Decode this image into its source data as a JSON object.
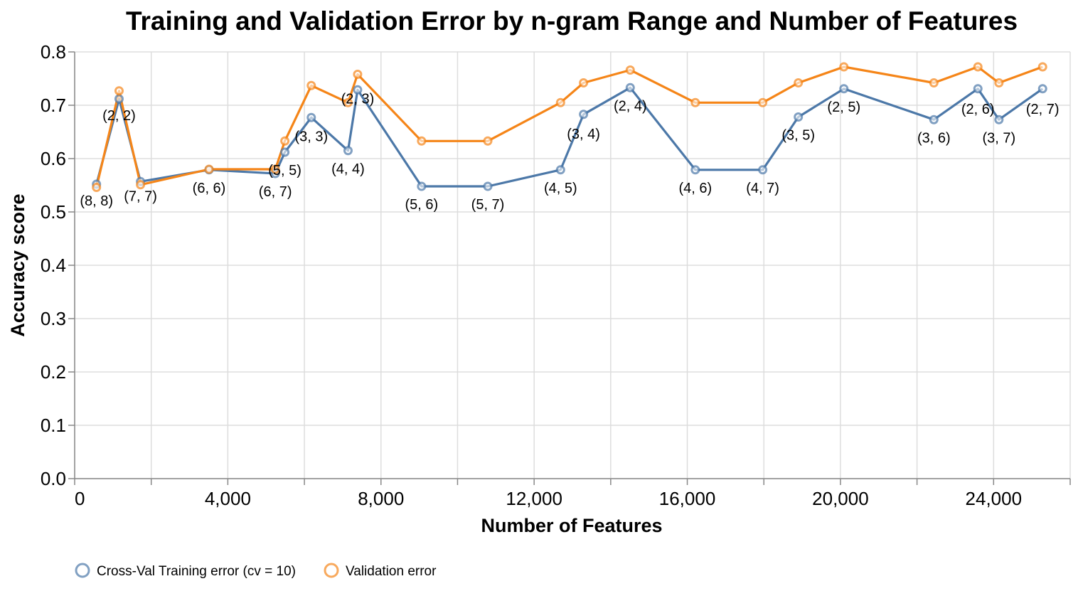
{
  "chart_data": {
    "type": "line",
    "title": "Training and Validation Error by n-gram Range and Number of Features",
    "xlabel": "Number of Features",
    "ylabel": "Accuracy score",
    "xlim": [
      0,
      26000
    ],
    "ylim": [
      0,
      0.8
    ],
    "x_ticks": [
      0,
      4000,
      8000,
      12000,
      16000,
      20000,
      24000
    ],
    "x_tick_labels": [
      "0",
      "4,000",
      "8,000",
      "12,000",
      "16,000",
      "20,000",
      "24,000"
    ],
    "y_ticks": [
      0,
      0.1,
      0.2,
      0.3,
      0.4,
      0.5,
      0.6,
      0.7,
      0.8
    ],
    "y_tick_labels": [
      "0.0",
      "0.1",
      "0.2",
      "0.3",
      "0.4",
      "0.5",
      "0.6",
      "0.7",
      "0.8"
    ],
    "grid": true,
    "legend_position": "bottom-left",
    "series": [
      {
        "name": "Cross-Val Training error (cv = 10)",
        "color": "#4c78a8",
        "x": [
          570,
          1160,
          1720,
          3510,
          5240,
          5490,
          6180,
          7140,
          7390,
          9060,
          10790,
          12690,
          13290,
          14510,
          16210,
          17970,
          18900,
          20090,
          22440,
          23590,
          24140,
          25280
        ],
        "values": [
          0.552,
          0.712,
          0.557,
          0.579,
          0.572,
          0.612,
          0.677,
          0.615,
          0.729,
          0.548,
          0.548,
          0.579,
          0.683,
          0.733,
          0.579,
          0.579,
          0.678,
          0.731,
          0.673,
          0.731,
          0.673,
          0.731
        ]
      },
      {
        "name": "Validation error",
        "color": "#f58518",
        "x": [
          570,
          1160,
          1720,
          3510,
          5240,
          5490,
          6180,
          7140,
          7390,
          9060,
          10790,
          12690,
          13290,
          14510,
          16210,
          17970,
          18900,
          20090,
          22440,
          23590,
          24140,
          25280
        ],
        "values": [
          0.546,
          0.727,
          0.551,
          0.58,
          0.58,
          0.633,
          0.737,
          0.705,
          0.758,
          0.633,
          0.633,
          0.705,
          0.742,
          0.766,
          0.705,
          0.705,
          0.742,
          0.772,
          0.742,
          0.772,
          0.742,
          0.772
        ]
      }
    ],
    "point_labels": [
      "(8, 8)",
      "(2, 2)",
      "(7, 7)",
      "(6, 6)",
      "(6, 7)",
      "(5, 5)",
      "(3, 3)",
      "(4, 4)",
      "(2, 3)",
      "(5, 6)",
      "(5, 7)",
      "(4, 5)",
      "(3, 4)",
      "(2, 4)",
      "(4, 6)",
      "(4, 7)",
      "(3, 5)",
      "(2, 5)",
      "(3, 6)",
      "(2, 6)",
      "(3, 7)",
      "(2, 7)"
    ]
  }
}
